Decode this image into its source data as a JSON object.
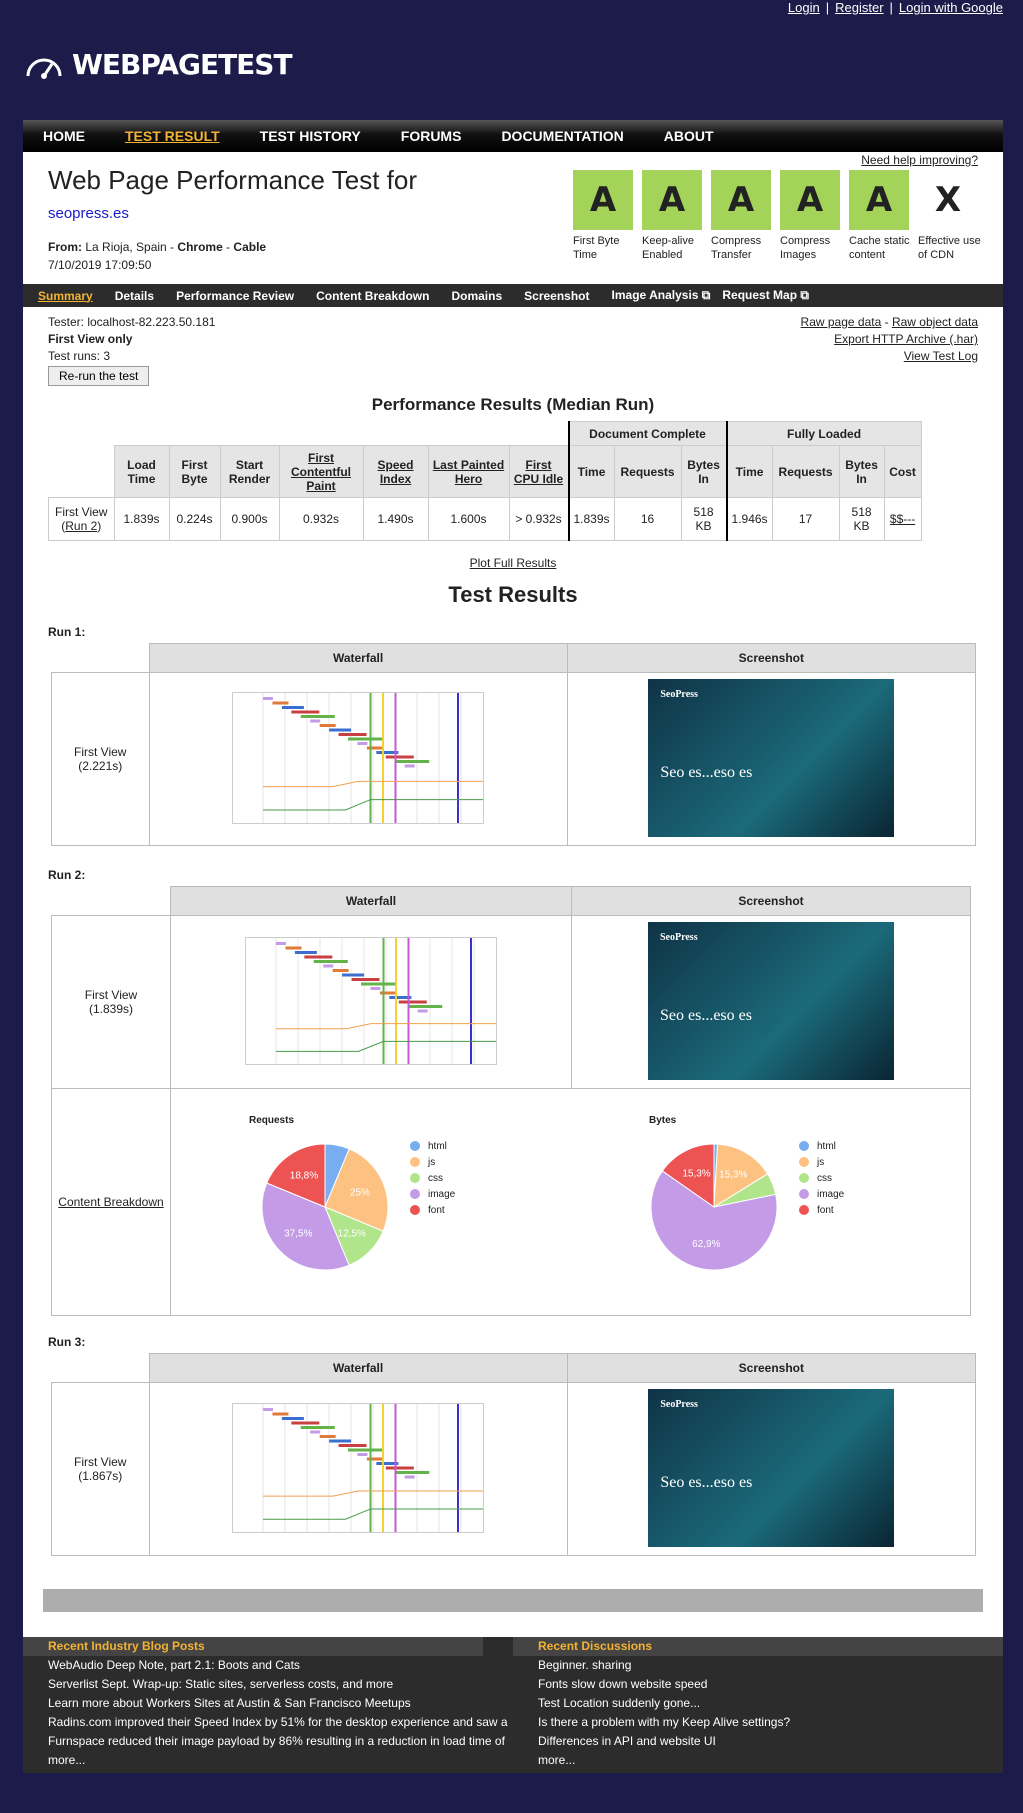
{
  "auth": {
    "login": "Login",
    "register": "Register",
    "google": "Login with Google",
    "sep": "|"
  },
  "logo": {
    "text": "WEBPAGETEST"
  },
  "nav": [
    "HOME",
    "TEST RESULT",
    "TEST HISTORY",
    "FORUMS",
    "DOCUMENTATION",
    "ABOUT"
  ],
  "header": {
    "title": "Web Page Performance Test for",
    "url": "seopress.es",
    "from_label": "From:",
    "from_value": "La Rioja, Spain",
    "browser": "Chrome",
    "connection": "Cable",
    "from_sep": " - ",
    "date": "7/10/2019 17:09:50",
    "help": "Need help improving?"
  },
  "grades": [
    {
      "grade": "A",
      "label": "First Byte Time"
    },
    {
      "grade": "A",
      "label": "Keep-alive Enabled"
    },
    {
      "grade": "A",
      "label": "Compress Transfer"
    },
    {
      "grade": "A",
      "label": "Compress Images"
    },
    {
      "grade": "A",
      "label": "Cache static content"
    },
    {
      "grade": "X",
      "label": "Effective use of CDN"
    }
  ],
  "subnav": [
    "Summary",
    "Details",
    "Performance Review",
    "Content Breakdown",
    "Domains",
    "Screenshot",
    "Image Analysis ⧉",
    "Request Map ⧉"
  ],
  "tester": {
    "tester": "Tester: localhost-82.223.50.181",
    "view": "First View only",
    "runs": "Test runs: 3",
    "rerun": "Re-run the test"
  },
  "rawlinks": {
    "raw_page": "Raw page data",
    "dash": " - ",
    "raw_object": "Raw object data",
    "export": "Export HTTP Archive (.har)",
    "log": "View Test Log"
  },
  "perf": {
    "heading": "Performance Results (Median Run)",
    "group_doc": "Document Complete",
    "group_full": "Fully Loaded",
    "cols": [
      "Load Time",
      "First Byte",
      "Start Render",
      "First Contentful Paint",
      "Speed Index",
      "Last Painted Hero",
      "First CPU Idle",
      "Time",
      "Requests",
      "Bytes In",
      "Time",
      "Requests",
      "Bytes In",
      "Cost"
    ],
    "row_label": "First View",
    "row_run": "Run 2",
    "values": [
      "1.839s",
      "0.224s",
      "0.900s",
      "0.932s",
      "1.490s",
      "1.600s",
      "> 0.932s",
      "1.839s",
      "16",
      "518 KB",
      "1.946s",
      "17",
      "518 KB",
      "$$---"
    ],
    "plot": "Plot Full Results"
  },
  "test_results": {
    "heading": "Test Results",
    "waterfall": "Waterfall",
    "screenshot": "Screenshot",
    "runs": [
      {
        "label": "Run 1:",
        "view": "First View",
        "time": "(2.221s)"
      },
      {
        "label": "Run 2:",
        "view": "First View",
        "time": "(1.839s)"
      },
      {
        "label": "Run 3:",
        "view": "First View",
        "time": "(1.867s)"
      }
    ],
    "shot": {
      "brand": "SeoPress",
      "headline": "Seo es...eso es"
    },
    "content_breakdown": "Content Breakdown"
  },
  "chart_data": [
    {
      "type": "pie",
      "title": "Requests",
      "categories": [
        "html",
        "js",
        "css",
        "image",
        "font"
      ],
      "values": [
        6.3,
        25,
        12.5,
        37.5,
        18.8
      ],
      "legend": "right"
    },
    {
      "type": "pie",
      "title": "Bytes",
      "categories": [
        "html",
        "js",
        "css",
        "image",
        "font"
      ],
      "values": [
        0.9,
        15.3,
        5.6,
        62.9,
        15.3
      ],
      "legend": "right"
    }
  ],
  "pie_colors": [
    "#78aef0",
    "#fdc182",
    "#b1e58b",
    "#c49be6",
    "#ee5353"
  ],
  "footer": {
    "blog_title": "Recent Industry Blog Posts",
    "blog": [
      "WebAudio Deep Note, part 2.1: Boots and Cats",
      "Serverlist Sept. Wrap-up: Static sites, serverless costs, and more",
      "Learn more about Workers Sites at Austin & San Francisco Meetups",
      "Radins.com improved their Speed Index by 51% for the desktop experience and saw a",
      "Furnspace reduced their image payload by 86% resulting in a reduction in load time of",
      "more..."
    ],
    "disc_title": "Recent Discussions",
    "disc": [
      "Beginner. sharing",
      "Fonts slow down website speed",
      "Test Location suddenly gone...",
      "Is there a problem with my Keep Alive settings?",
      "Differences in API and website UI",
      "more..."
    ]
  }
}
